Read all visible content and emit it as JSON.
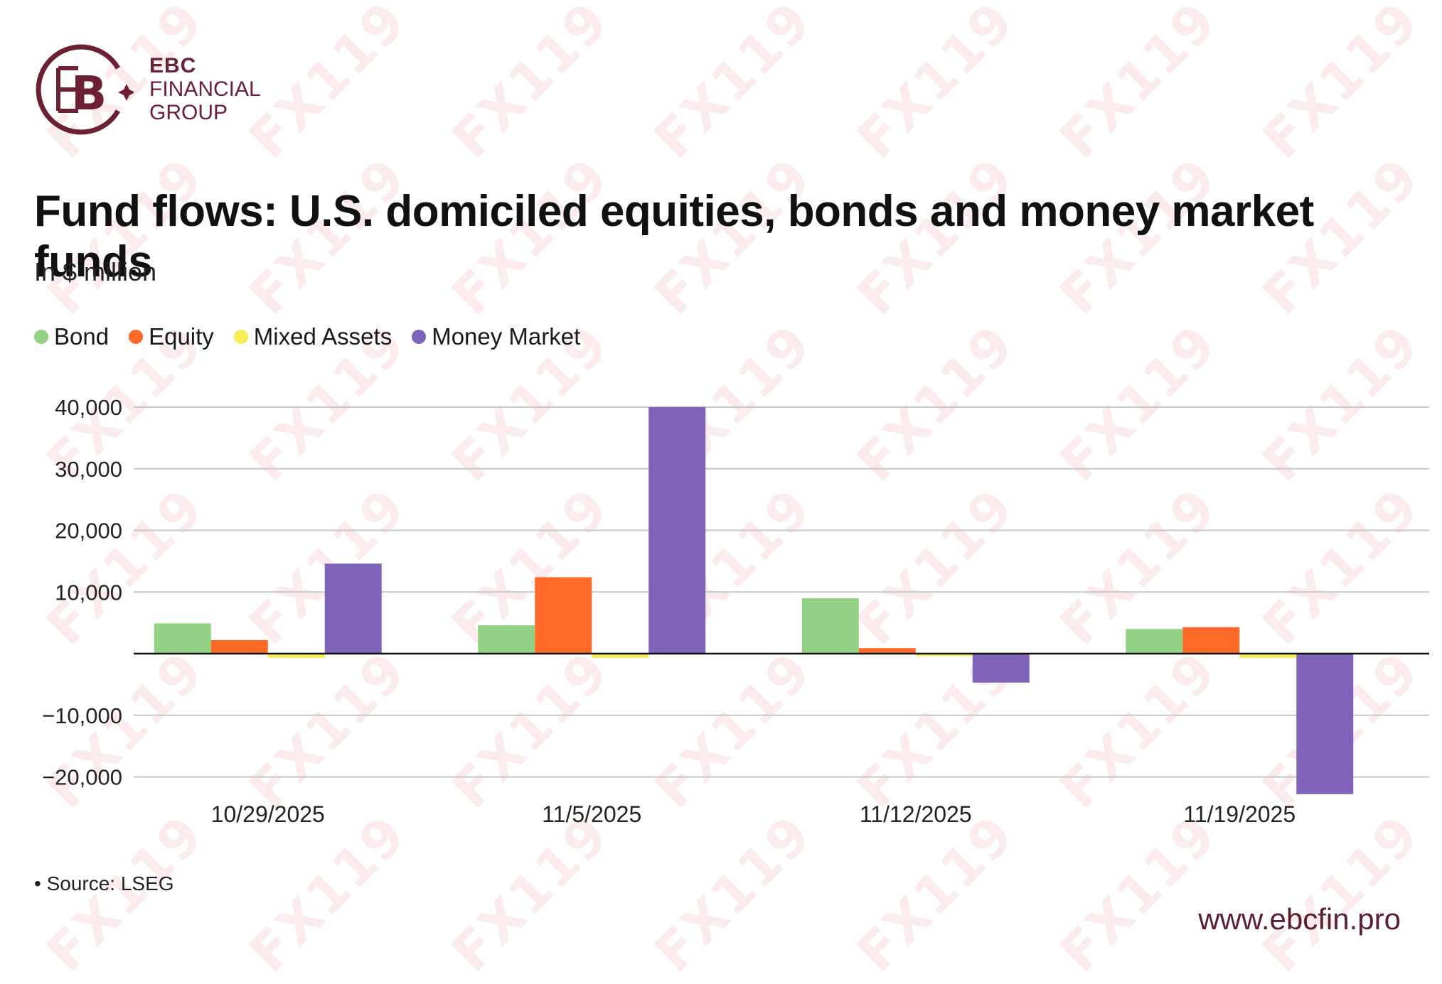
{
  "logo": {
    "line1": "EBC",
    "line2": "FINANCIAL",
    "line3": "GROUP",
    "monogram": "B",
    "color": "#6b2034"
  },
  "title": "Fund flows: U.S. domiciled equities, bonds and money market funds",
  "subtitle": "In $ million",
  "source": "• Source: LSEG",
  "website": "www.ebcfin.pro",
  "watermark": "FX119",
  "chart_data": {
    "type": "bar",
    "categories": [
      "10/29/2025",
      "11/5/2025",
      "11/12/2025",
      "11/19/2025"
    ],
    "series": [
      {
        "name": "Bond",
        "color": "#93d284",
        "values": [
          4900,
          4600,
          9000,
          4000
        ]
      },
      {
        "name": "Equity",
        "color": "#fd6a28",
        "values": [
          2200,
          12400,
          900,
          4300
        ]
      },
      {
        "name": "Mixed Assets",
        "color": "#f7ee55",
        "values": [
          -700,
          -700,
          -400,
          -700
        ]
      },
      {
        "name": "Money Market",
        "color": "#7f63b8",
        "values": [
          14600,
          40000,
          -4700,
          -22800
        ]
      }
    ],
    "yticks": [
      40000,
      30000,
      20000,
      10000,
      -10000,
      -20000
    ],
    "ytick_labels": [
      "40,000",
      "30,000",
      "20,000",
      "10,000",
      "−10,000",
      "−20,000"
    ],
    "ylim": [
      -22800,
      40000
    ],
    "grid": true,
    "legend_position": "top-left"
  }
}
